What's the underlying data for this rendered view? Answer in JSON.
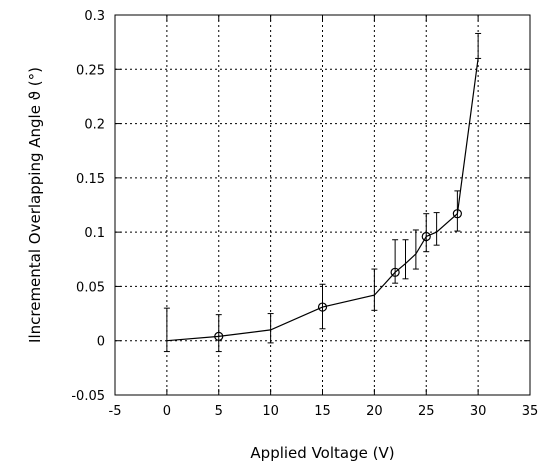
{
  "chart_data": {
    "type": "line",
    "title": "",
    "xlabel": "Applied Voltage (V)",
    "ylabel": "Ilncremental Overlapping Angle ϑ (°)",
    "xlim": [
      -5,
      35
    ],
    "ylim": [
      -0.05,
      0.3
    ],
    "xticks": [
      -5,
      0,
      5,
      10,
      15,
      20,
      25,
      30,
      35
    ],
    "yticks": [
      -0.05,
      0,
      0.05,
      0.1,
      0.15,
      0.2,
      0.25,
      0.3
    ],
    "xtick_labels": [
      "-5",
      "0",
      "5",
      "10",
      "15",
      "20",
      "25",
      "30",
      "35"
    ],
    "ytick_labels": [
      "-0.05",
      "0",
      "0.05",
      "0.1",
      "0.15",
      "0.2",
      "0.25",
      "0.3"
    ],
    "grid": true,
    "legend": "none",
    "series": [
      {
        "x": [
          0,
          5,
          10,
          15,
          20,
          22,
          23,
          24,
          25,
          26,
          28,
          30
        ],
        "y": [
          0,
          0.004,
          0.01,
          0.031,
          0.042,
          0.063,
          0.071,
          0.08,
          0.096,
          0.1,
          0.117,
          0.26
        ],
        "y_err_low": [
          0.01,
          0.014,
          0.012,
          0.02,
          0.014,
          0.01,
          0.014,
          0.014,
          0.014,
          0.012,
          0.016,
          0
        ],
        "y_err_high": [
          0.03,
          0.02,
          0.015,
          0.021,
          0.024,
          0.03,
          0.022,
          0.022,
          0.021,
          0.018,
          0.021,
          0.023
        ],
        "markers": [
          false,
          true,
          false,
          true,
          false,
          true,
          false,
          false,
          true,
          false,
          true,
          false
        ]
      }
    ],
    "colors": {
      "line": "#000000",
      "grid": "#000000",
      "background": "#ffffff"
    }
  }
}
